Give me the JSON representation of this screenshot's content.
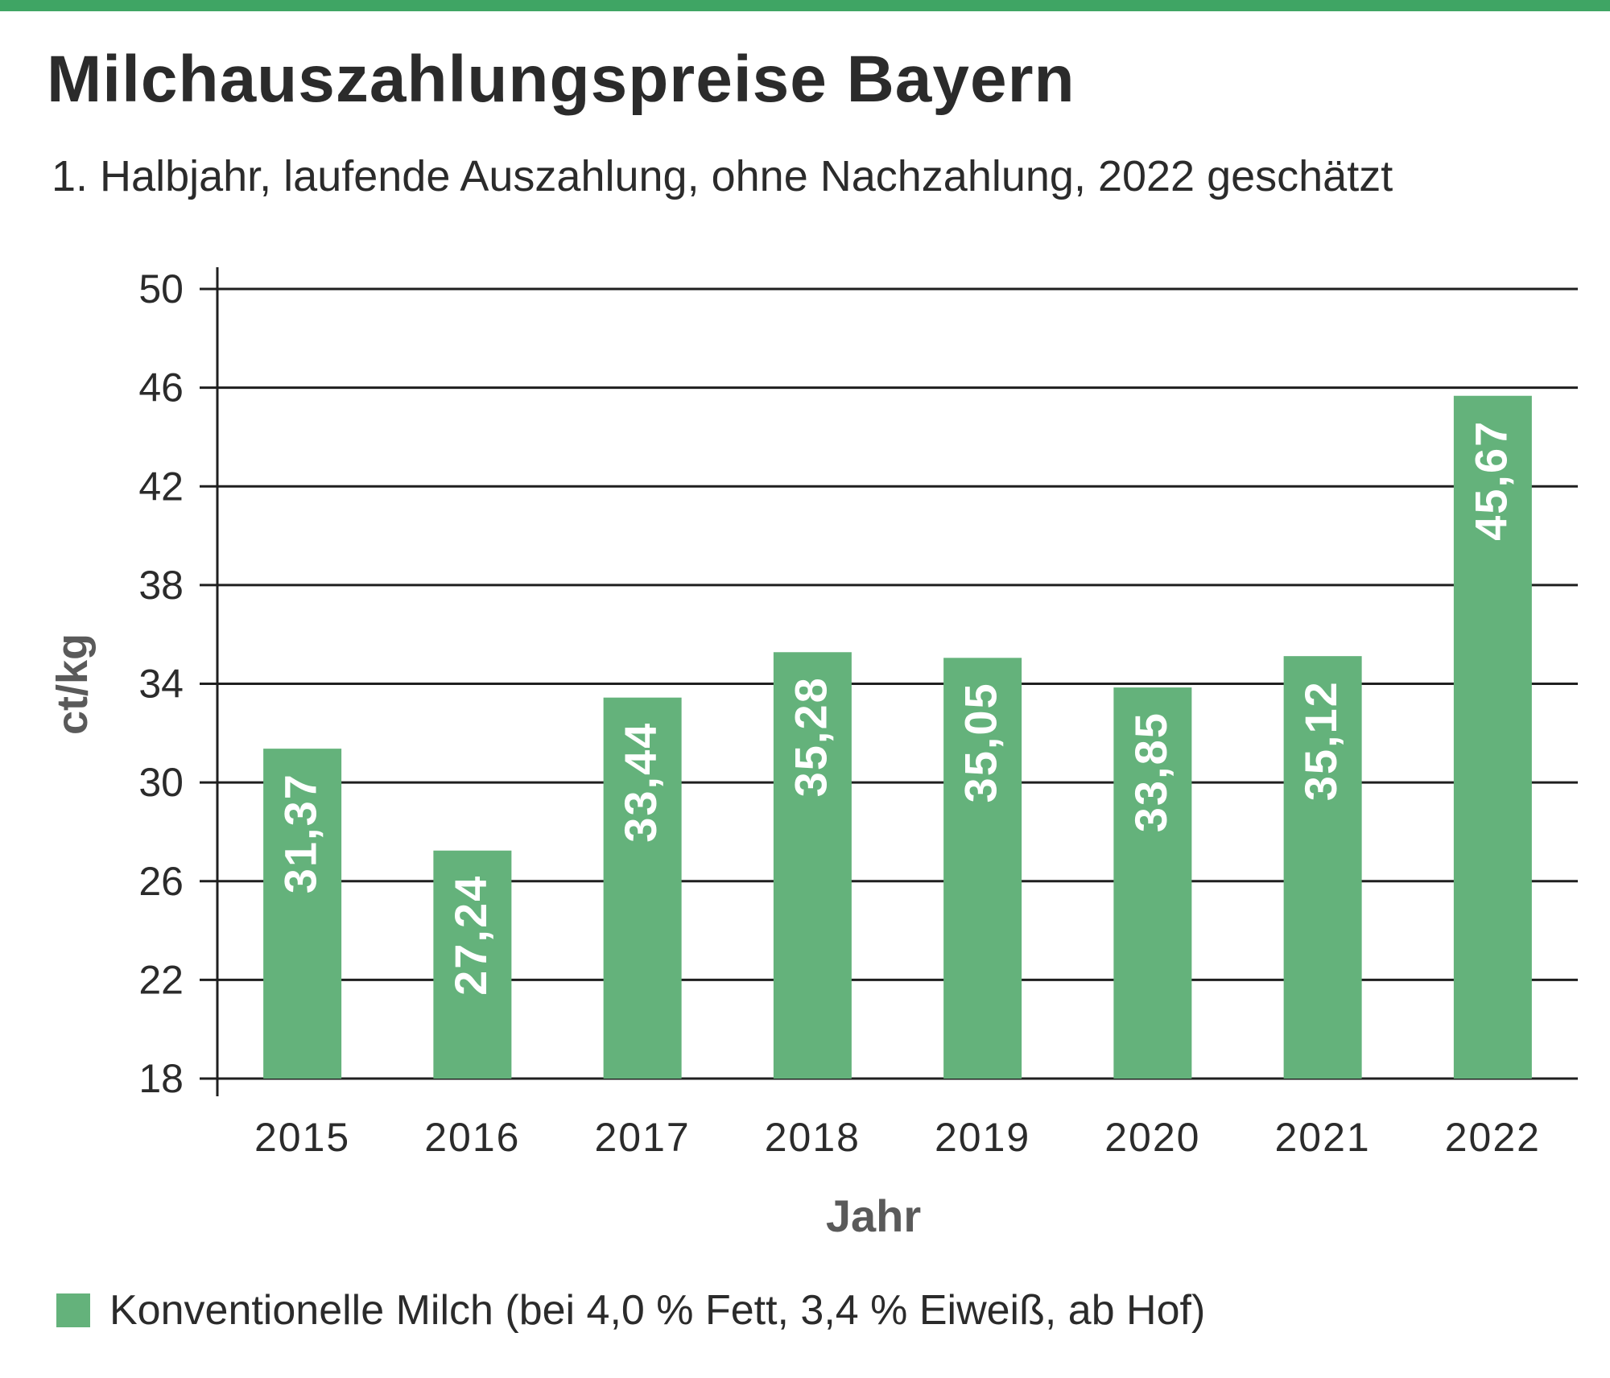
{
  "colors": {
    "accent": "#3fa564",
    "bar": "#64b27b",
    "bar_label": "#ffffff",
    "text": "#2b2b2b",
    "axis_title": "#5a5a5a",
    "grid": "#1f1f1f"
  },
  "header": {
    "title": "Milchauszahlungspreise Bayern",
    "subtitle": "1. Halbjahr, laufende Auszahlung, ohne Nachzahlung, 2022 geschätzt"
  },
  "legend": {
    "label": "Konventionelle Milch (bei 4,0 % Fett, 3,4 % Eiweiß, ab Hof)"
  },
  "chart_data": {
    "type": "bar",
    "title": "Milchauszahlungspreise Bayern",
    "subtitle": "1. Halbjahr, laufende Auszahlung, ohne Nachzahlung, 2022 geschätzt",
    "xlabel": "Jahr",
    "ylabel": "ct/kg",
    "categories": [
      "2015",
      "2016",
      "2017",
      "2018",
      "2019",
      "2020",
      "2021",
      "2022"
    ],
    "series": [
      {
        "name": "Konventionelle Milch (bei 4,0 % Fett, 3,4 % Eiweiß, ab Hof)",
        "values": [
          31.37,
          27.24,
          33.44,
          35.28,
          35.05,
          33.85,
          35.12,
          45.67
        ],
        "labels": [
          "31,37",
          "27,24",
          "33,44",
          "35,28",
          "35,05",
          "33,85",
          "35,12",
          "45,67"
        ]
      }
    ],
    "ylim": [
      18,
      50
    ],
    "yticks": [
      "50",
      "46",
      "42",
      "38",
      "34",
      "30",
      "26",
      "22",
      "18"
    ],
    "grid": true,
    "legend_position": "bottom-left"
  }
}
